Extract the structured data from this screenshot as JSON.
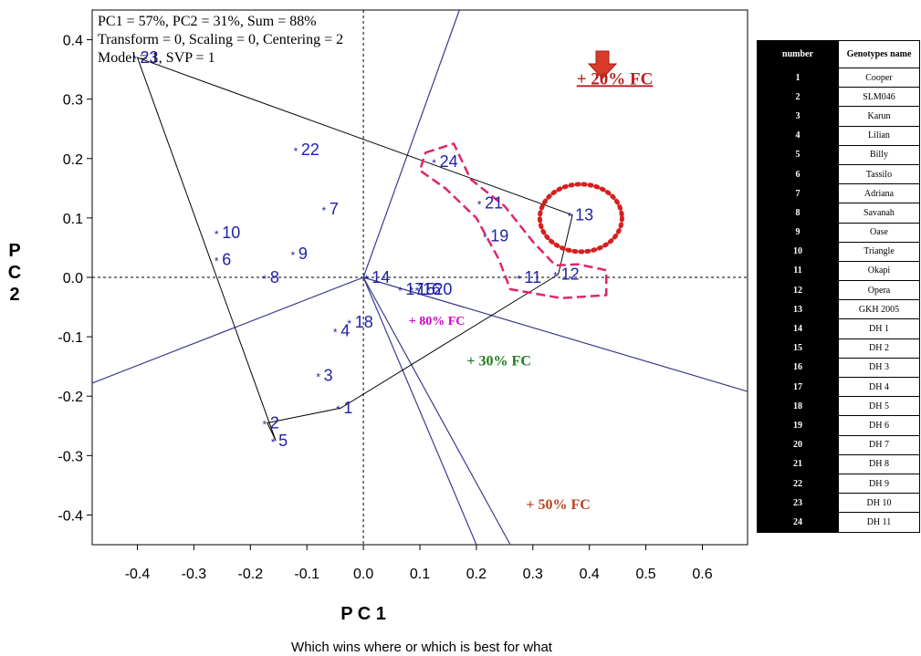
{
  "chart_data": {
    "type": "scatter",
    "title_lines": [
      "PC1 = 57%, PC2 = 31%, Sum = 88%",
      "Transform = 0, Scaling = 0, Centering = 2",
      "Model = 1, SVP = 1"
    ],
    "xlabel": "P C 1",
    "ylabel_chars": [
      "P",
      "C",
      "2"
    ],
    "caption": "Which wins where or which is best for what",
    "xlim": [
      -0.48,
      0.68
    ],
    "ylim": [
      -0.45,
      0.45
    ],
    "x_ticks": [
      -0.4,
      -0.3,
      -0.2,
      -0.1,
      0.0,
      0.1,
      0.2,
      0.3,
      0.4,
      0.5,
      0.6
    ],
    "x_tick_labels": [
      "-0.4",
      "-0.3",
      "-0.2",
      "-0.1",
      "0.0",
      "0.1",
      "0.2",
      "0.3",
      "0.4",
      "0.5",
      "0.6"
    ],
    "y_ticks": [
      0.4,
      0.3,
      0.2,
      0.1,
      0.0,
      -0.1,
      -0.2,
      -0.3,
      -0.4
    ],
    "y_tick_labels": [
      "0.4",
      "0.3",
      "0.2",
      "0.1",
      "0.0",
      "-0.1",
      "-0.2",
      "-0.3",
      "-0.4"
    ],
    "points": [
      {
        "label": "1",
        "x": -0.04,
        "y": -0.22
      },
      {
        "label": "2",
        "x": -0.17,
        "y": -0.245
      },
      {
        "label": "3",
        "x": -0.075,
        "y": -0.165
      },
      {
        "label": "4",
        "x": -0.045,
        "y": -0.09
      },
      {
        "label": "5",
        "x": -0.155,
        "y": -0.275
      },
      {
        "label": "6",
        "x": -0.255,
        "y": 0.03
      },
      {
        "label": "7",
        "x": -0.065,
        "y": 0.115
      },
      {
        "label": "8",
        "x": -0.17,
        "y": 0.0
      },
      {
        "label": "9",
        "x": -0.12,
        "y": 0.04
      },
      {
        "label": "10",
        "x": -0.255,
        "y": 0.075
      },
      {
        "label": "11",
        "x": 0.28,
        "y": 0.0
      },
      {
        "label": "12",
        "x": 0.345,
        "y": 0.005
      },
      {
        "label": "13",
        "x": 0.37,
        "y": 0.105
      },
      {
        "label": "14",
        "x": 0.01,
        "y": 0.0
      },
      {
        "label": "15",
        "x": 0.09,
        "y": -0.02
      },
      {
        "label": "16",
        "x": 0.1,
        "y": -0.02
      },
      {
        "label": "17",
        "x": 0.07,
        "y": -0.02
      },
      {
        "label": "18",
        "x": -0.02,
        "y": -0.075
      },
      {
        "label": "19",
        "x": 0.22,
        "y": 0.07
      },
      {
        "label": "20",
        "x": 0.12,
        "y": -0.02
      },
      {
        "label": "21",
        "x": 0.21,
        "y": 0.125
      },
      {
        "label": "22",
        "x": -0.115,
        "y": 0.215
      },
      {
        "label": "23",
        "x": -0.4,
        "y": 0.37
      },
      {
        "label": "24",
        "x": 0.13,
        "y": 0.195
      }
    ],
    "hull": [
      [
        -0.4,
        0.37
      ],
      [
        0.37,
        0.105
      ],
      [
        0.345,
        0.005
      ],
      [
        -0.04,
        -0.22
      ],
      [
        -0.17,
        -0.245
      ],
      [
        -0.155,
        -0.275
      ]
    ],
    "sector_rays": [
      {
        "from": [
          0.0,
          0.0
        ],
        "to": [
          -0.48,
          -0.178
        ]
      },
      {
        "from": [
          0.0,
          0.0
        ],
        "to": [
          0.68,
          -0.192
        ]
      },
      {
        "from": [
          0.0,
          0.0
        ],
        "to": [
          0.17,
          0.45
        ]
      },
      {
        "from": [
          0.0,
          0.0
        ],
        "to": [
          0.26,
          -0.45
        ]
      },
      {
        "from": [
          0.0,
          0.0
        ],
        "to": [
          0.2,
          -0.45
        ]
      }
    ],
    "annotations": [
      {
        "text": "+ 20% FC",
        "x": 0.445,
        "y": 0.325,
        "color": "#b22222",
        "size": 19,
        "underline": true
      },
      {
        "text": "+ 80% FC",
        "x": 0.13,
        "y": -0.08,
        "color": "#cc00cc",
        "size": 14,
        "underline": false
      },
      {
        "text": "+ 30% FC",
        "x": 0.24,
        "y": -0.148,
        "color": "#1e7b1e",
        "size": 16,
        "underline": false
      },
      {
        "text": "+ 50% FC",
        "x": 0.345,
        "y": -0.39,
        "color": "#b8421c",
        "size": 16,
        "underline": false
      }
    ],
    "colors": {
      "points": "#1f1fa8",
      "rays": "#3b3b8f",
      "hull": "#000000",
      "highlight_dashed": "#e0246e",
      "highlight_dotted": "#d42020",
      "arrow": "#d93a2a"
    },
    "highlight_markers": [
      "down-arrow-icon",
      "dashed-outline-around-24-21-19-11-12",
      "dotted-circle-around-13"
    ]
  },
  "legend_table": {
    "headers": [
      "number",
      "Genotypes name"
    ],
    "rows": [
      [
        "1",
        "Cooper"
      ],
      [
        "2",
        "SLM046"
      ],
      [
        "3",
        "Karun"
      ],
      [
        "4",
        "Lilian"
      ],
      [
        "5",
        "Billy"
      ],
      [
        "6",
        "Tassilo"
      ],
      [
        "7",
        "Adriana"
      ],
      [
        "8",
        "Savanah"
      ],
      [
        "9",
        "Oase"
      ],
      [
        "10",
        "Triangle"
      ],
      [
        "11",
        "Okapi"
      ],
      [
        "12",
        "Opera"
      ],
      [
        "13",
        "GKH 2005"
      ],
      [
        "14",
        "DH 1"
      ],
      [
        "15",
        "DH 2"
      ],
      [
        "16",
        "DH 3"
      ],
      [
        "17",
        "DH 4"
      ],
      [
        "18",
        "DH 5"
      ],
      [
        "19",
        "DH 6"
      ],
      [
        "20",
        "DH 7"
      ],
      [
        "21",
        "DH 8"
      ],
      [
        "22",
        "DH 9"
      ],
      [
        "23",
        "DH 10"
      ],
      [
        "24",
        "DH 11"
      ]
    ]
  }
}
